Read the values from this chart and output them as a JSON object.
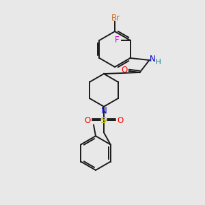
{
  "background_color": "#e8e8e8",
  "bond_color": "#1a1a1a",
  "atom_colors": {
    "Br": "#c87020",
    "F": "#cc00cc",
    "O": "#ff0000",
    "N_amide": "#0000cc",
    "N_pip": "#0000cc",
    "S": "#cccc00",
    "H": "#008080",
    "C": "#1a1a1a"
  },
  "figsize": [
    3.0,
    3.0
  ],
  "dpi": 100
}
